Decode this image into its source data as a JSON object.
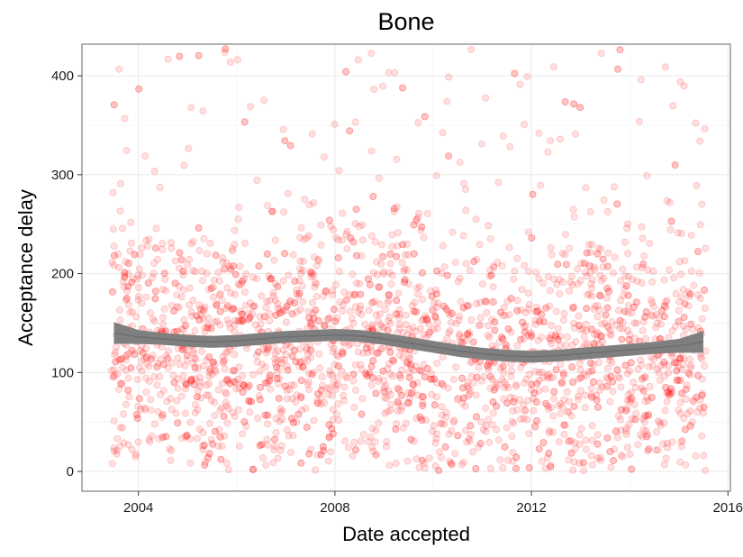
{
  "chart_data": {
    "type": "scatter",
    "title": "Bone",
    "xlabel": "Date accepted",
    "ylabel": "Acceptance delay",
    "x_ticks": [
      2004,
      2008,
      2012,
      2016
    ],
    "y_ticks": [
      0,
      100,
      200,
      300,
      400
    ],
    "xlim": [
      2002.85,
      2016.05
    ],
    "ylim": [
      -20,
      432
    ],
    "grid": true,
    "point_color": "#ff0000",
    "point_opacity": 0.12,
    "smooth_color": "#7f7f7f",
    "date_range": [
      2003.45,
      2015.55
    ],
    "n_points": 2600,
    "smooth_curve": {
      "x": [
        2003.5,
        2004.0,
        2004.5,
        2005.0,
        2005.5,
        2006.0,
        2006.5,
        2007.0,
        2007.5,
        2008.0,
        2008.5,
        2009.0,
        2009.5,
        2010.0,
        2010.5,
        2011.0,
        2011.5,
        2012.0,
        2012.5,
        2013.0,
        2013.5,
        2014.0,
        2014.5,
        2015.0,
        2015.5
      ],
      "y": [
        140,
        136,
        134,
        132,
        131,
        132,
        134,
        136,
        137,
        138,
        137,
        134,
        130,
        126,
        122,
        119,
        117,
        116,
        117,
        119,
        121,
        123,
        125,
        127,
        131
      ],
      "band_half_width": [
        11,
        7,
        6,
        6,
        6,
        6,
        6,
        6,
        6,
        6,
        6,
        6,
        6,
        6,
        6,
        6,
        6,
        6,
        6,
        6,
        6,
        6,
        6,
        7,
        11
      ]
    }
  }
}
